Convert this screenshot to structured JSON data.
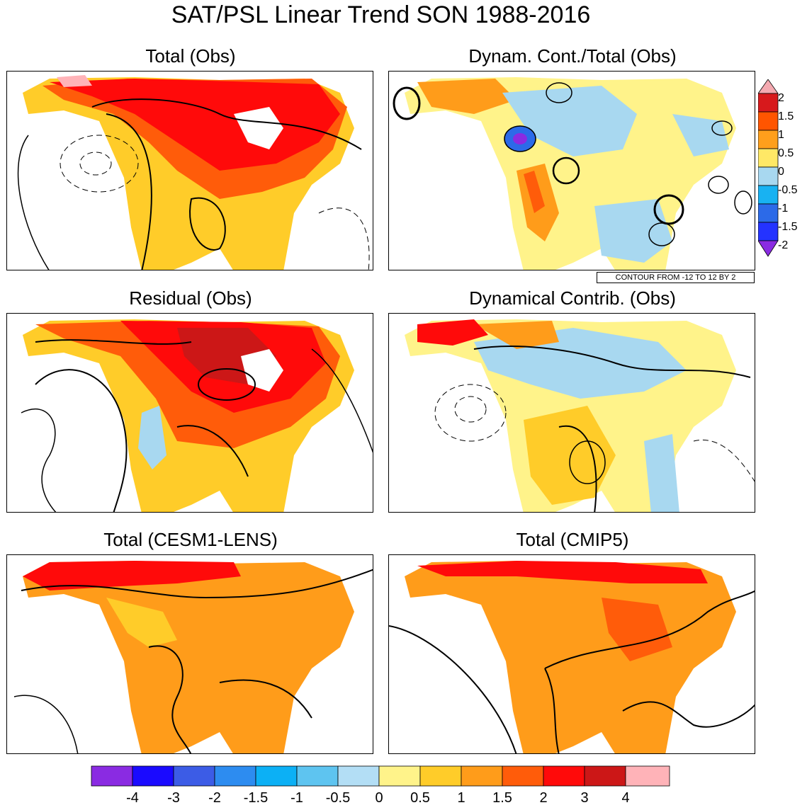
{
  "title": "SAT/PSL Linear Trend SON 1988-2016",
  "panels": [
    {
      "id": "total-obs",
      "title": "Total (Obs)"
    },
    {
      "id": "dynam-cont-total-obs",
      "title": "Dynam. Cont./Total (Obs)"
    },
    {
      "id": "residual-obs",
      "title": "Residual (Obs)"
    },
    {
      "id": "dynamical-contrib-obs",
      "title": "Dynamical Contrib. (Obs)"
    },
    {
      "id": "total-cesm1-lens",
      "title": "Total (CESM1-LENS)"
    },
    {
      "id": "total-cmip5",
      "title": "Total (CMIP5)"
    }
  ],
  "contour_note": "CONTOUR FROM -12 TO 12 BY 2",
  "side_colorbar": {
    "labels": [
      "2",
      "1.5",
      "1",
      "0.5",
      "0",
      "-0.5",
      "-1",
      "-1.5",
      "-2"
    ],
    "colors": [
      "#f4a9b0",
      "#d7191c",
      "#ff5500",
      "#ff9f1c",
      "#ffe866",
      "#a8d8f0",
      "#18b2f2",
      "#2c6ae8",
      "#2433ff",
      "#8a2be2"
    ]
  },
  "bottom_colorbar": {
    "labels": [
      "-4",
      "-3",
      "-2",
      "-1.5",
      "-1",
      "-0.5",
      "0",
      "0.5",
      "1",
      "1.5",
      "2",
      "3",
      "4"
    ],
    "colors": [
      "#8a2be2",
      "#1a0aff",
      "#3c5ce6",
      "#2d8cf0",
      "#0cb0f5",
      "#5ec4f0",
      "#b3def5",
      "#fff38a",
      "#ffcc29",
      "#ff9c1a",
      "#ff5c0a",
      "#ff0a0a",
      "#cc1717",
      "#ffb3b8"
    ]
  }
}
